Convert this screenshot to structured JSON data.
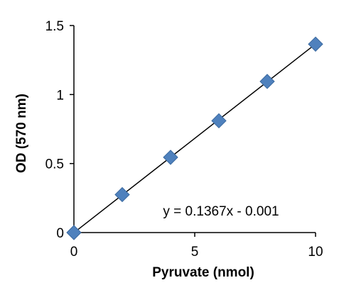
{
  "chart_data": {
    "type": "scatter",
    "title": "",
    "xlabel": "Pyruvate (nmol)",
    "ylabel": "OD (570 nm)",
    "xlim": [
      0,
      10
    ],
    "ylim": [
      0,
      1.5
    ],
    "x_ticks": [
      0,
      5,
      10
    ],
    "y_ticks": [
      0,
      0.5,
      1,
      1.5
    ],
    "x_tick_labels": [
      "0",
      "5",
      "10"
    ],
    "y_tick_labels": [
      "0",
      "0.5",
      "1",
      "1.5"
    ],
    "grid": false,
    "legend": "none",
    "series": [
      {
        "x": [
          0,
          2,
          4,
          6,
          8,
          10
        ],
        "y": [
          0.0,
          0.275,
          0.545,
          0.81,
          1.095,
          1.365
        ],
        "marker": "diamond",
        "color": "#4f81bd"
      }
    ],
    "trendline": {
      "slope": 0.1367,
      "intercept": -0.001,
      "x_range": [
        0,
        10
      ],
      "color": "#000000"
    },
    "annotation": "y = 0.1367x - 0.001"
  }
}
